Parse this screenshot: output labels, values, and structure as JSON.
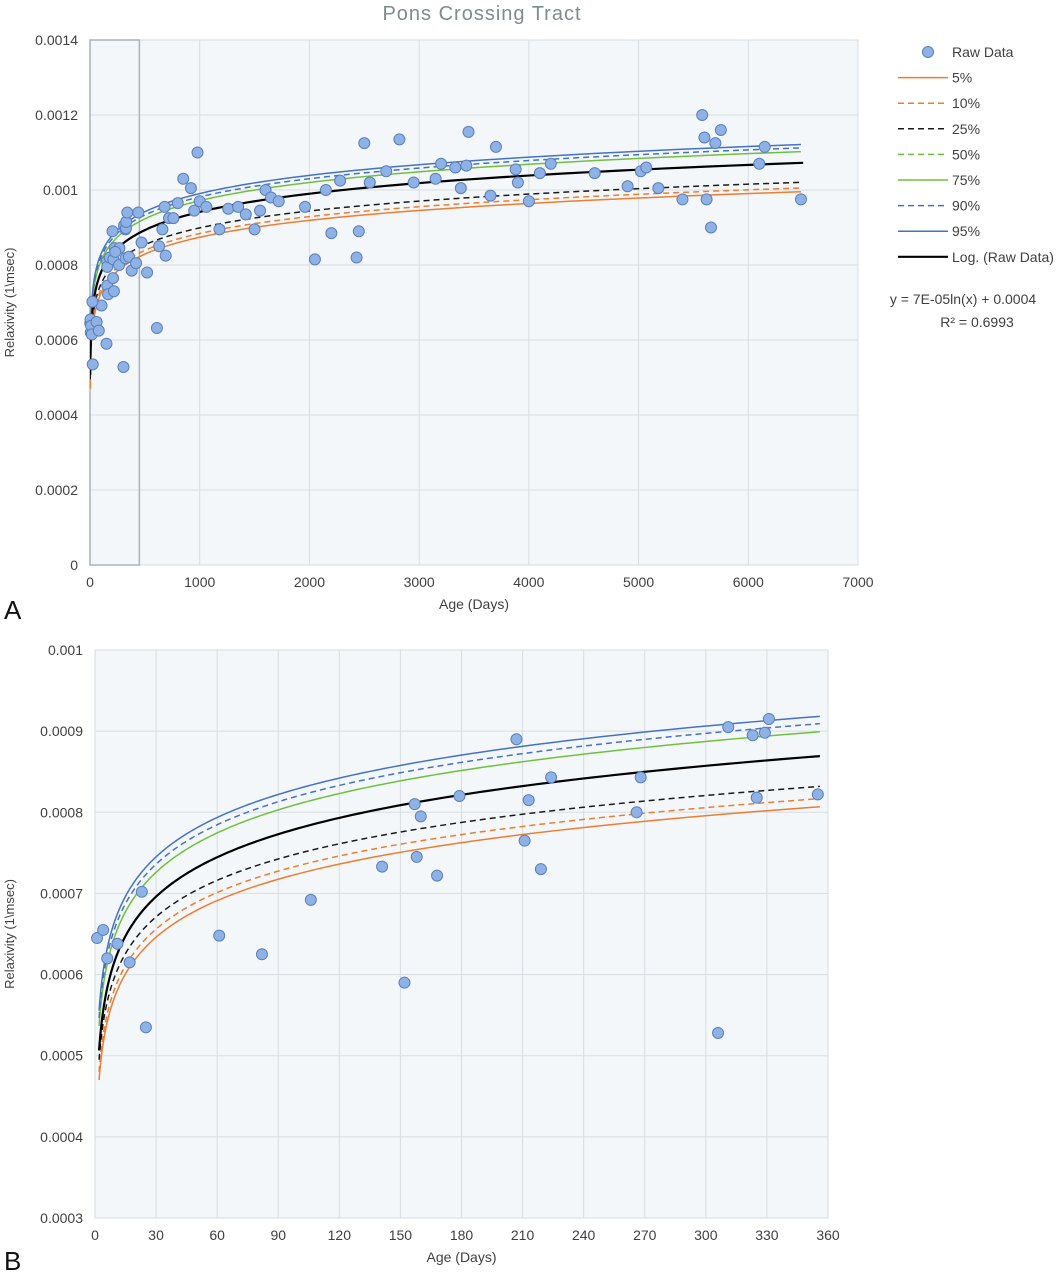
{
  "figure": {
    "title": "Pons Crossing Tract",
    "panel_a_letter": "A",
    "panel_b_letter": "B"
  },
  "chart_data": [
    {
      "type": "scatter",
      "panel": "A",
      "title": "Pons Crossing Tract",
      "xlabel": "Age (Days)",
      "ylabel": "Relaxivity (1\\msec)",
      "xlim": [
        0,
        7000
      ],
      "ylim": [
        0,
        0.0014
      ],
      "x_ticks": [
        "0",
        "1000",
        "2000",
        "3000",
        "4000",
        "5000",
        "6000",
        "7000"
      ],
      "y_ticks": [
        "0",
        "0.0002",
        "0.0004",
        "0.0006",
        "0.0008",
        "0.001",
        "0.0012",
        "0.0014"
      ],
      "grid": true,
      "legend_position": "right",
      "legend": [
        {
          "label": "Raw Data",
          "color": "#8fb2e6",
          "style": "marker"
        },
        {
          "label": "5%",
          "color": "#ed7d31",
          "style": "solid"
        },
        {
          "label": "10%",
          "color": "#ed7d31",
          "style": "dashed"
        },
        {
          "label": "25%",
          "color": "#1a1a1a",
          "style": "dashed"
        },
        {
          "label": "50%",
          "color": "#70c040",
          "style": "dashed"
        },
        {
          "label": "75%",
          "color": "#70c040",
          "style": "solid"
        },
        {
          "label": "90%",
          "color": "#4472c4",
          "style": "dashed"
        },
        {
          "label": "95%",
          "color": "#4472c4",
          "style": "solid"
        },
        {
          "label": "Log. (Raw Data)",
          "color": "#000000",
          "style": "solid-bold"
        }
      ],
      "annotation_equation": "y = 7E-05ln(x) + 0.0004",
      "annotation_r2": "R² = 0.6993",
      "highlight_box_x": [
        0,
        450
      ],
      "raw_data": [
        [
          2,
          0.000645
        ],
        [
          5,
          0.000655
        ],
        [
          7,
          0.00062
        ],
        [
          10,
          0.000638
        ],
        [
          17,
          0.000615
        ],
        [
          25,
          0.000535
        ],
        [
          60,
          0.000648
        ],
        [
          80,
          0.000625
        ],
        [
          105,
          0.000692
        ],
        [
          150,
          0.00059
        ],
        [
          155,
          0.00081
        ],
        [
          157,
          0.000795
        ],
        [
          158,
          0.000745
        ],
        [
          165,
          0.000722
        ],
        [
          180,
          0.00082
        ],
        [
          205,
          0.00089
        ],
        [
          210,
          0.000765
        ],
        [
          213,
          0.000815
        ],
        [
          218,
          0.00073
        ],
        [
          225,
          0.000845
        ],
        [
          265,
          0.0008
        ],
        [
          268,
          0.000845
        ],
        [
          305,
          0.000528
        ],
        [
          310,
          0.000905
        ],
        [
          322,
          0.000895
        ],
        [
          325,
          0.000818
        ],
        [
          328,
          0.000898
        ],
        [
          330,
          0.000915
        ],
        [
          355,
          0.000822
        ],
        [
          22,
          0.000702
        ],
        [
          230,
          0.000835
        ],
        [
          340,
          0.00094
        ],
        [
          380,
          0.000785
        ],
        [
          420,
          0.000805
        ],
        [
          440,
          0.00094
        ],
        [
          470,
          0.00086
        ],
        [
          520,
          0.00078
        ],
        [
          610,
          0.000632
        ],
        [
          630,
          0.00085
        ],
        [
          660,
          0.000895
        ],
        [
          680,
          0.000955
        ],
        [
          690,
          0.000825
        ],
        [
          720,
          0.000925
        ],
        [
          760,
          0.000925
        ],
        [
          800,
          0.000965
        ],
        [
          850,
          0.00103
        ],
        [
          920,
          0.001005
        ],
        [
          950,
          0.000945
        ],
        [
          980,
          0.0011
        ],
        [
          1000,
          0.00097
        ],
        [
          1060,
          0.000955
        ],
        [
          1180,
          0.000895
        ],
        [
          1260,
          0.00095
        ],
        [
          1350,
          0.000955
        ],
        [
          1420,
          0.000935
        ],
        [
          1500,
          0.000895
        ],
        [
          1550,
          0.000945
        ],
        [
          1600,
          0.001
        ],
        [
          1650,
          0.00098
        ],
        [
          1720,
          0.00097
        ],
        [
          1960,
          0.000955
        ],
        [
          2050,
          0.000815
        ],
        [
          2150,
          0.001
        ],
        [
          2200,
          0.000885
        ],
        [
          2280,
          0.001025
        ],
        [
          2430,
          0.00082
        ],
        [
          2450,
          0.00089
        ],
        [
          2500,
          0.001125
        ],
        [
          2550,
          0.00102
        ],
        [
          2700,
          0.00105
        ],
        [
          2820,
          0.001135
        ],
        [
          2950,
          0.00102
        ],
        [
          3150,
          0.00103
        ],
        [
          3200,
          0.00107
        ],
        [
          3330,
          0.00106
        ],
        [
          3380,
          0.001005
        ],
        [
          3430,
          0.001065
        ],
        [
          3450,
          0.001155
        ],
        [
          3650,
          0.000985
        ],
        [
          3700,
          0.001115
        ],
        [
          3880,
          0.001055
        ],
        [
          3900,
          0.00102
        ],
        [
          4000,
          0.00097
        ],
        [
          4100,
          0.001045
        ],
        [
          4200,
          0.00107
        ],
        [
          4600,
          0.001045
        ],
        [
          4900,
          0.00101
        ],
        [
          5020,
          0.00105
        ],
        [
          5070,
          0.00106
        ],
        [
          5180,
          0.001005
        ],
        [
          5400,
          0.000975
        ],
        [
          5580,
          0.0012
        ],
        [
          5600,
          0.00114
        ],
        [
          5620,
          0.000975
        ],
        [
          5660,
          0.0009
        ],
        [
          5700,
          0.001125
        ],
        [
          5750,
          0.00116
        ],
        [
          6100,
          0.00107
        ],
        [
          6150,
          0.001115
        ],
        [
          6480,
          0.000975
        ]
      ],
      "percentile_curves": {
        "x_start": 2,
        "x_end": 6480,
        "log_x_end": 6500
      }
    },
    {
      "type": "scatter",
      "panel": "B",
      "xlabel": "Age (Days)",
      "ylabel": "Relaxivity (1\\msec)",
      "xlim": [
        0,
        360
      ],
      "ylim": [
        0.0003,
        0.001
      ],
      "x_ticks": [
        "0",
        "30",
        "60",
        "90",
        "120",
        "150",
        "180",
        "210",
        "240",
        "270",
        "300",
        "330",
        "360"
      ],
      "y_ticks": [
        "0.0003",
        "0.0004",
        "0.0005",
        "0.0006",
        "0.0007",
        "0.0008",
        "0.0009",
        "0.001"
      ],
      "grid": true,
      "raw_data": [
        [
          1,
          0.000645
        ],
        [
          4,
          0.000655
        ],
        [
          6,
          0.00062
        ],
        [
          11,
          0.000638
        ],
        [
          17,
          0.000615
        ],
        [
          23,
          0.000702
        ],
        [
          25,
          0.000535
        ],
        [
          61,
          0.000648
        ],
        [
          82,
          0.000625
        ],
        [
          106,
          0.000692
        ],
        [
          141,
          0.000733
        ],
        [
          152,
          0.00059
        ],
        [
          157,
          0.00081
        ],
        [
          158,
          0.000745
        ],
        [
          160,
          0.000795
        ],
        [
          168,
          0.000722
        ],
        [
          179,
          0.00082
        ],
        [
          207,
          0.00089
        ],
        [
          211,
          0.000765
        ],
        [
          213,
          0.000815
        ],
        [
          219,
          0.00073
        ],
        [
          224,
          0.000843
        ],
        [
          266,
          0.0008
        ],
        [
          268,
          0.000843
        ],
        [
          306,
          0.000528
        ],
        [
          311,
          0.000905
        ],
        [
          323,
          0.000895
        ],
        [
          325,
          0.000818
        ],
        [
          329,
          0.000898
        ],
        [
          331,
          0.000915
        ],
        [
          355,
          0.000822
        ]
      ],
      "percentile_curves": {
        "x_start": 2,
        "x_end": 356
      }
    }
  ]
}
